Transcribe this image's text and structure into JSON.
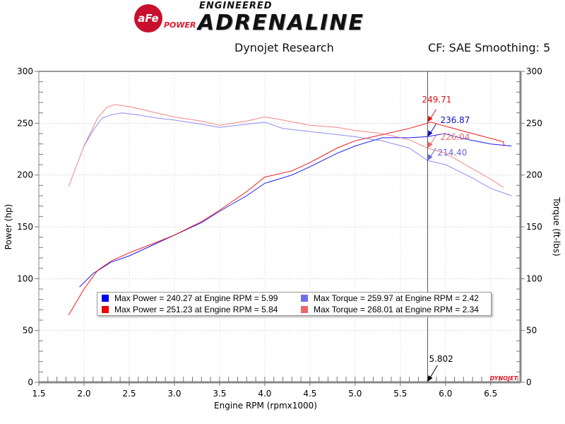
{
  "logo": {
    "brand": "aFe",
    "brand_sub": "POWER",
    "tagline_top": "ENGINEERED",
    "tagline_main": "ADRENALINE"
  },
  "header": {
    "title": "Dynojet Research",
    "settings": "CF: SAE Smoothing: 5"
  },
  "chart_data": {
    "type": "line",
    "xlabel": "Engine RPM (rpmx1000)",
    "ylabel": "Power (hp)",
    "y2label": "Torque (ft-lbs)",
    "xlim": [
      1.5,
      6.83
    ],
    "ylim": [
      0,
      300
    ],
    "y2lim": [
      0,
      300
    ],
    "xticks": [
      "1.5",
      "2.0",
      "2.5",
      "3.0",
      "3.5",
      "4.0",
      "4.5",
      "5.0",
      "5.5",
      "6.0",
      "6.5"
    ],
    "yticks": [
      "0",
      "50",
      "100",
      "150",
      "200",
      "250",
      "300"
    ],
    "grid": true,
    "cursor": {
      "x": 5.802,
      "label": "5.802"
    },
    "series": [
      {
        "name": "Max Power = 240.27 at Engine RPM = 5.99",
        "color": "#0000ee",
        "axis": "left",
        "x": [
          1.95,
          2.1,
          2.3,
          2.5,
          2.8,
          3.0,
          3.3,
          3.5,
          3.8,
          4.0,
          4.3,
          4.5,
          4.8,
          5.0,
          5.3,
          5.6,
          5.8,
          5.99,
          6.2,
          6.5,
          6.73
        ],
        "y": [
          92,
          105,
          116,
          122,
          134,
          142,
          154,
          165,
          180,
          192,
          200,
          208,
          221,
          228,
          236,
          236,
          237,
          240,
          235,
          230,
          228
        ]
      },
      {
        "name": "Max Power = 251.23 at Engine RPM = 5.84",
        "color": "#ee0000",
        "axis": "left",
        "x": [
          1.83,
          2.0,
          2.15,
          2.3,
          2.5,
          2.8,
          3.0,
          3.3,
          3.5,
          3.8,
          4.0,
          4.3,
          4.5,
          4.8,
          5.0,
          5.3,
          5.6,
          5.84,
          6.0,
          6.3,
          6.64,
          6.65
        ],
        "y": [
          65,
          90,
          108,
          117,
          125,
          135,
          142,
          155,
          166,
          184,
          198,
          204,
          212,
          226,
          233,
          239,
          245,
          251,
          247,
          240,
          232,
          228
        ]
      },
      {
        "name": "Max Torque = 259.97 at Engine RPM = 2.42",
        "color": "#7070ee",
        "axis": "right",
        "x": [
          2.0,
          2.1,
          2.2,
          2.3,
          2.42,
          2.6,
          2.8,
          3.0,
          3.3,
          3.5,
          3.8,
          4.0,
          4.2,
          4.5,
          4.8,
          5.0,
          5.3,
          5.6,
          5.8,
          6.0,
          6.3,
          6.5,
          6.73
        ],
        "y": [
          228,
          243,
          255,
          258,
          260,
          258,
          255,
          253,
          249,
          246,
          249,
          251,
          245,
          242,
          239,
          237,
          233,
          226,
          214,
          210,
          197,
          187,
          180
        ]
      },
      {
        "name": "Max Torque = 268.01 at Engine RPM = 2.34",
        "color": "#ee6666",
        "axis": "right",
        "x": [
          1.83,
          2.0,
          2.15,
          2.25,
          2.34,
          2.5,
          2.7,
          3.0,
          3.3,
          3.5,
          3.8,
          4.0,
          4.2,
          4.5,
          4.8,
          5.0,
          5.3,
          5.6,
          5.8,
          6.0,
          6.3,
          6.5,
          6.64
        ],
        "y": [
          189,
          228,
          255,
          265,
          268,
          266,
          262,
          256,
          252,
          248,
          252,
          256,
          253,
          248,
          246,
          243,
          240,
          234,
          226,
          221,
          206,
          196,
          188
        ]
      }
    ],
    "annotations": [
      {
        "label": "249.71",
        "color": "#dd1111"
      },
      {
        "label": "236.87",
        "color": "#1111bb"
      },
      {
        "label": "226.04",
        "color": "#ee6666"
      },
      {
        "label": "214.40",
        "color": "#6666dd"
      }
    ],
    "watermark": "DYNOJET"
  }
}
